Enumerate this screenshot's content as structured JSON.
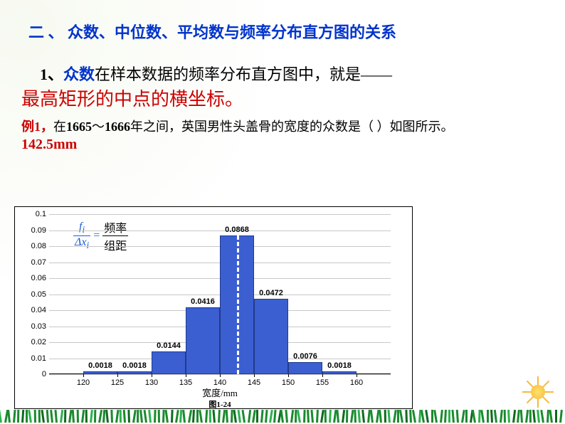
{
  "section_title": "二 、 众数、中位数、平均数与频率分布直方图的关系",
  "point": {
    "num": "1、",
    "keyword": "众数",
    "rest": "在样本数据的频率分布直方图中，就是——"
  },
  "conclusion": "最高矩形的中点的横坐标。",
  "example": {
    "label": "例1，",
    "text_before_year1": "在",
    "year1": "1665",
    "tilde": "～",
    "year2": "1666",
    "text_after": "年之间，英国男性头盖骨的宽度的众数是（       ）如图所示。"
  },
  "answer": "142.5mm",
  "chart": {
    "type": "histogram",
    "ratio_label": {
      "num": "f",
      "sub_num": "i",
      "den": "Δx",
      "sub_den": "i",
      "cn_num": "频率",
      "cn_den": "组距"
    },
    "x_ticks": [
      120,
      125,
      130,
      135,
      140,
      145,
      150,
      155,
      160
    ],
    "x_min": 115,
    "x_max": 165,
    "y_ticks": [
      0,
      0.01,
      0.02,
      0.03,
      0.04,
      0.05,
      0.06,
      0.07,
      0.08,
      0.09,
      0.1
    ],
    "y_max": 0.1,
    "bars": [
      {
        "x0": 120,
        "x1": 125,
        "value": 0.0018,
        "label": "0.0018"
      },
      {
        "x0": 125,
        "x1": 130,
        "value": 0.0018,
        "label": "0.0018"
      },
      {
        "x0": 130,
        "x1": 135,
        "value": 0.0144,
        "label": "0.0144"
      },
      {
        "x0": 135,
        "x1": 140,
        "value": 0.0416,
        "label": "0.0416"
      },
      {
        "x0": 140,
        "x1": 145,
        "value": 0.0868,
        "label": "0.0868"
      },
      {
        "x0": 145,
        "x1": 150,
        "value": 0.0472,
        "label": "0.0472"
      },
      {
        "x0": 150,
        "x1": 155,
        "value": 0.0076,
        "label": "0.0076"
      },
      {
        "x0": 155,
        "x1": 160,
        "value": 0.0018,
        "label": "0.0018"
      }
    ],
    "bar_color": "#3b5fd1",
    "bar_border": "#223a8a",
    "grid_color": "#c8c8c8",
    "mode_x": 142.5,
    "xlabel": "宽度/mm",
    "fig_label": "图1-24"
  }
}
